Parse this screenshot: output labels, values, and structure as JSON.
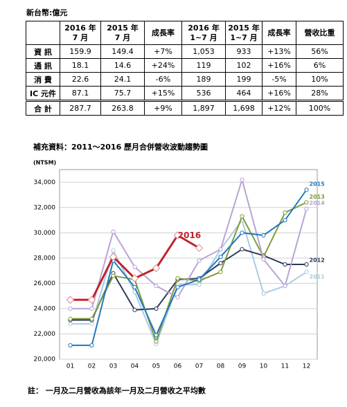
{
  "unit_note": "新台幣:億元",
  "table": {
    "columns": [
      [
        "2016 年",
        "7 月"
      ],
      [
        "2015 年",
        "7 月"
      ],
      [
        "成長率"
      ],
      [
        "2016 年",
        "1~7 月"
      ],
      [
        "2015 年",
        "1~7 月"
      ],
      [
        "成長率"
      ],
      [
        "營收比重"
      ]
    ],
    "rows": [
      [
        "資 訊",
        "159.9",
        "149.4",
        "+7%",
        "1,053",
        "933",
        "+13%",
        "56%"
      ],
      [
        "通 訊",
        "18.1",
        "14.6",
        "+24%",
        "119",
        "102",
        "+16%",
        "6%"
      ],
      [
        "消 費",
        "22.6",
        "24.1",
        "-6%",
        "189",
        "199",
        "-5%",
        "10%"
      ],
      [
        "IC 元件",
        "87.1",
        "75.7",
        "+15%",
        "536",
        "464",
        "+16%",
        "28%"
      ],
      [
        "合 計",
        "287.7",
        "263.8",
        "+9%",
        "1,897",
        "1,698",
        "+12%",
        "100%"
      ]
    ]
  },
  "chart_data": {
    "type": "line",
    "title": "補充資料：2011～2016 歷月合併營收波動趨勢圖",
    "y_label": "(NTSM)",
    "categories": [
      "01",
      "02",
      "03",
      "04",
      "05",
      "06",
      "07",
      "08",
      "09",
      "10",
      "11",
      "12"
    ],
    "ylim": [
      20000,
      35000
    ],
    "yticks": [
      {
        "value": 20000,
        "label": "20,000"
      },
      {
        "value": 22000,
        "label": "22,000"
      },
      {
        "value": 24000,
        "label": "24,000"
      },
      {
        "value": 26000,
        "label": "26,000"
      },
      {
        "value": 28000,
        "label": "28,000"
      },
      {
        "value": 30000,
        "label": "30,000"
      },
      {
        "value": 32000,
        "label": "32,000"
      },
      {
        "value": 34000,
        "label": "34,000"
      }
    ],
    "grid": true,
    "series": [
      {
        "name": "2011",
        "color": "#a9cbe3",
        "values": [
          22800,
          22800,
          28600,
          25300,
          21200,
          25900,
          25900,
          28700,
          31000,
          25200,
          25800,
          26900
        ]
      },
      {
        "name": "2012",
        "color": "#2b3a58",
        "values": [
          23100,
          23100,
          26800,
          23900,
          24000,
          26300,
          26400,
          27600,
          28700,
          28200,
          27500,
          27500
        ]
      },
      {
        "name": "2013",
        "color": "#7f9a3a",
        "values": [
          23200,
          23200,
          26600,
          26300,
          21400,
          26400,
          26200,
          26900,
          31300,
          28100,
          31600,
          32400
        ]
      },
      {
        "name": "2014",
        "color": "#b9a3d6",
        "values": [
          24000,
          24000,
          30100,
          27300,
          25800,
          24900,
          27800,
          28700,
          34200,
          27900,
          25800,
          31900
        ]
      },
      {
        "name": "2015",
        "color": "#1f78c1",
        "values": [
          21100,
          21100,
          27800,
          25700,
          21900,
          25700,
          26300,
          28100,
          30000,
          29800,
          31000,
          33400
        ]
      },
      {
        "name": "2016",
        "color": "#c0232b",
        "marker": "diamond",
        "values": [
          24700,
          24700,
          28100,
          26400,
          27200,
          29800,
          28800,
          null,
          null,
          null,
          null,
          null
        ]
      }
    ]
  },
  "footnote": "註： 一月及二月營收為該年一月及二月營收之平均數"
}
